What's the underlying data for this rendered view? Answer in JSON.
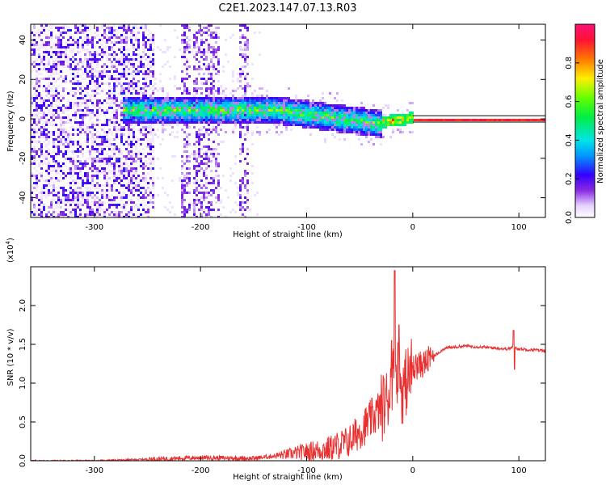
{
  "title": "C2E1.2023.147.07.13.R03",
  "colorbar": {
    "label": "Normalized spectral amplitude",
    "ticks": [
      "0.0",
      "0.2",
      "0.4",
      "0.6",
      "0.8"
    ],
    "tick_values": [
      0.0,
      0.2,
      0.4,
      0.6,
      0.8
    ],
    "range": [
      0,
      1
    ]
  },
  "chart_data": [
    {
      "type": "heatmap",
      "xlabel": "Height of straight line (km)",
      "ylabel": "Frequency (Hz)",
      "xlim": [
        -360,
        125
      ],
      "ylim": [
        -50,
        48
      ],
      "xticks": [
        -300,
        -200,
        -100,
        0,
        100
      ],
      "xtick_labels": [
        "-300",
        "-200",
        "-100",
        "0",
        "100"
      ],
      "yticks": [
        -40,
        -20,
        0,
        20,
        40
      ],
      "ytick_labels": [
        "-40",
        "-20",
        "0",
        "20",
        "40"
      ],
      "grid": false,
      "description_values": {
        "band_center_hz": 0,
        "band_halfwidth_hz": [
          8,
          6,
          2
        ],
        "band_x_breaks_km": [
          -270,
          -30,
          0
        ]
      }
    },
    {
      "type": "line",
      "xlabel": "Height of straight line (km)",
      "ylabel": "SNR (10 * v/v)",
      "multiplier_label": "(x10",
      "multiplier_exp": "4",
      "xlim": [
        -360,
        125
      ],
      "ylim": [
        0,
        2.5
      ],
      "xticks": [
        -300,
        -200,
        -100,
        0,
        100
      ],
      "xtick_labels": [
        "-300",
        "-200",
        "-100",
        "0",
        "100"
      ],
      "yticks": [
        0.0,
        0.5,
        1.0,
        1.5,
        2.0
      ],
      "ytick_labels": [
        "0.0",
        "0.5",
        "1.0",
        "1.5",
        "2.0"
      ],
      "color": "#e83030",
      "grid": false,
      "x": [
        -360,
        -300,
        -250,
        -200,
        -150,
        -120,
        -100,
        -80,
        -60,
        -45,
        -35,
        -25,
        -20,
        -15,
        -10,
        -5,
        0,
        10,
        20,
        30,
        50,
        70,
        90,
        95,
        100,
        125
      ],
      "y": [
        0.0,
        0.0,
        0.02,
        0.04,
        0.03,
        0.08,
        0.12,
        0.15,
        0.25,
        0.45,
        0.6,
        0.75,
        1.0,
        1.2,
        0.9,
        1.05,
        1.2,
        1.25,
        1.35,
        1.45,
        1.48,
        1.46,
        1.44,
        1.47,
        1.44,
        1.42
      ],
      "spikes": [
        {
          "x": -17,
          "y": 2.45
        },
        {
          "x": -13,
          "y": 1.75
        },
        {
          "x": -20,
          "y": 1.55
        },
        {
          "x": 95,
          "y": 1.68
        },
        {
          "x": 96,
          "y": 1.18
        }
      ]
    }
  ]
}
